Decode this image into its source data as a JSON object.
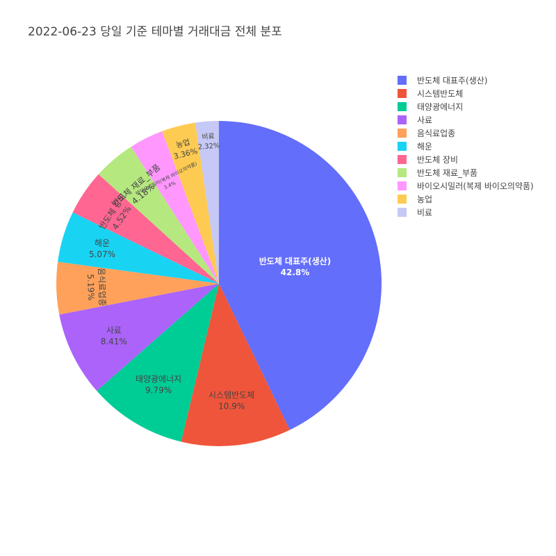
{
  "chart_data": {
    "type": "pie",
    "title": "2022-06-23 당일 기준 테마별 거래대금 전체 분포",
    "slices": [
      {
        "label": "반도체 대표주(생산)",
        "value": 42.8,
        "pct_text": "42.8%",
        "color": "#636efa"
      },
      {
        "label": "시스템반도체",
        "value": 10.9,
        "pct_text": "10.9%",
        "color": "#EF553B"
      },
      {
        "label": "태양광에너지",
        "value": 9.79,
        "pct_text": "9.79%",
        "color": "#00cc96"
      },
      {
        "label": "사료",
        "value": 8.41,
        "pct_text": "8.41%",
        "color": "#ab63fa"
      },
      {
        "label": "음식료업종",
        "value": 5.19,
        "pct_text": "5.19%",
        "color": "#FFA15A"
      },
      {
        "label": "해운",
        "value": 5.07,
        "pct_text": "5.07%",
        "color": "#19d3f3"
      },
      {
        "label": "반도체 장비",
        "value": 4.52,
        "pct_text": "4.52%",
        "color": "#FF6692"
      },
      {
        "label": "반도체 재료_부품",
        "value": 4.18,
        "pct_text": "4.18%",
        "color": "#B6E880"
      },
      {
        "label": "바이오시밀러(복제 바이오의약품)",
        "value": 3.4,
        "pct_text": "3.4%",
        "color": "#FF97FF"
      },
      {
        "label": "농업",
        "value": 3.36,
        "pct_text": "3.36%",
        "color": "#FECB52"
      },
      {
        "label": "비료",
        "value": 2.32,
        "pct_text": "2.32%",
        "color": "#c6c8f5"
      }
    ],
    "legend_position": "top-right",
    "start_angle": "12 o'clock",
    "direction": "clockwise"
  }
}
